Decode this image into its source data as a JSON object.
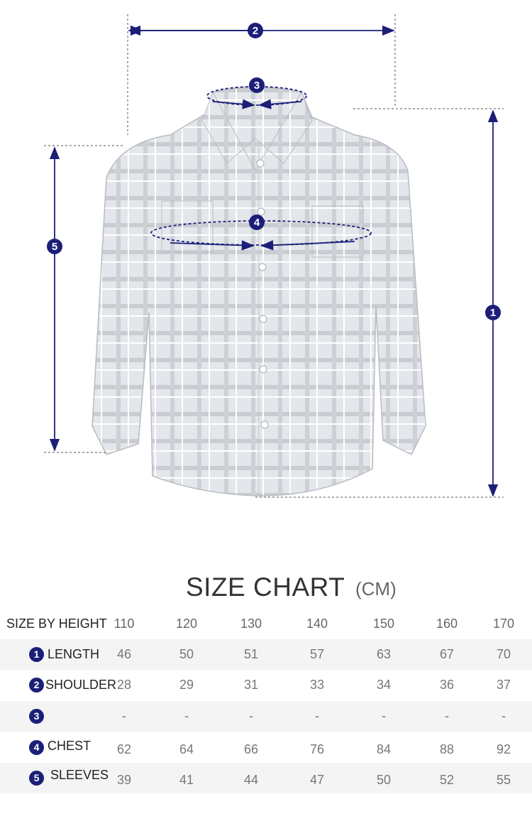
{
  "colors": {
    "accent": "#1b1f78",
    "shirt": "#dfe3e8"
  },
  "markers": [
    "1",
    "2",
    "3",
    "4",
    "5"
  ],
  "title": "SIZE CHART",
  "unit": "(CM)",
  "table": {
    "header_label": "SIZE BY HEIGHT",
    "sizes": [
      "110",
      "120",
      "130",
      "140",
      "150",
      "160",
      "170"
    ],
    "rows": [
      {
        "marker": "1",
        "label": "LENGTH",
        "values": [
          "46",
          "50",
          "51",
          "57",
          "63",
          "67",
          "70"
        ]
      },
      {
        "marker": "2",
        "label": "SHOULDER",
        "values": [
          "28",
          "29",
          "31",
          "33",
          "34",
          "36",
          "37"
        ]
      },
      {
        "marker": "3",
        "label": "",
        "values": [
          "-",
          "-",
          "-",
          "-",
          "-",
          "-",
          "-"
        ]
      },
      {
        "marker": "4",
        "label": "CHEST",
        "values": [
          "62",
          "64",
          "66",
          "76",
          "84",
          "88",
          "92"
        ]
      },
      {
        "marker": "5",
        "label": "SLEEVES",
        "values": [
          "39",
          "41",
          "44",
          "47",
          "50",
          "52",
          "55"
        ]
      }
    ]
  }
}
